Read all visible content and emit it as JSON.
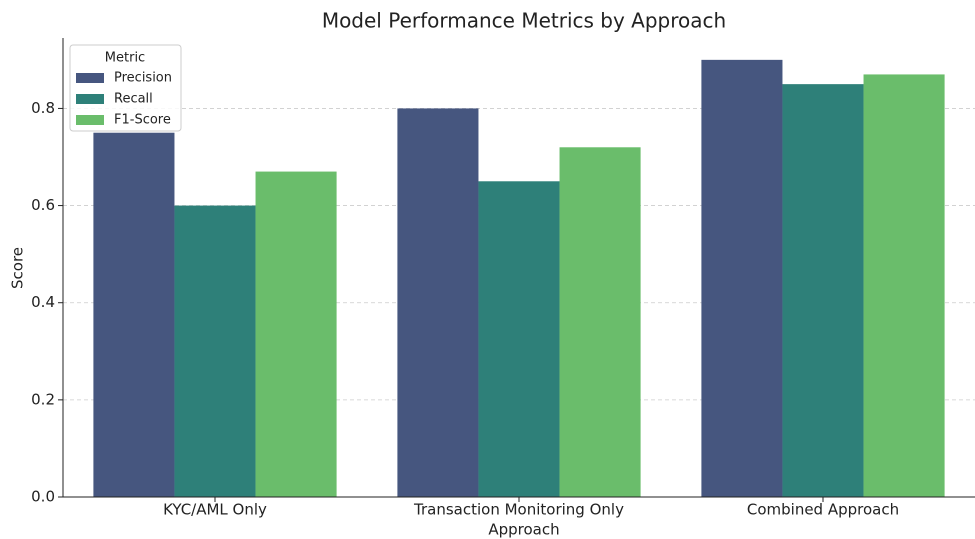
{
  "chart_data": {
    "type": "bar",
    "title": "Model Performance Metrics by Approach",
    "xlabel": "Approach",
    "ylabel": "Score",
    "categories": [
      "KYC/AML Only",
      "Transaction Monitoring Only",
      "Combined Approach"
    ],
    "series": [
      {
        "name": "Precision",
        "color": "#46567f",
        "values": [
          0.75,
          0.8,
          0.9
        ]
      },
      {
        "name": "Recall",
        "color": "#2e8079",
        "values": [
          0.6,
          0.65,
          0.85
        ]
      },
      {
        "name": "F1-Score",
        "color": "#6abd6b",
        "values": [
          0.67,
          0.72,
          0.87
        ]
      }
    ],
    "legend_title": "Metric",
    "legend": "upper left",
    "ylim": [
      0,
      0.945
    ],
    "yticks": [
      {
        "value": 0,
        "label": "0.0"
      },
      0.2,
      0.4,
      0.6,
      0.8
    ],
    "grid": true
  }
}
